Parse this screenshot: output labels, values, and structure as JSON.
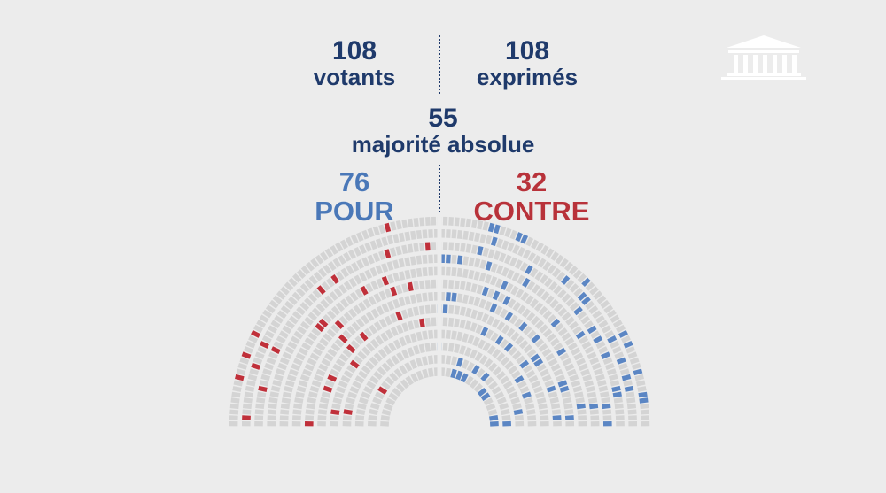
{
  "chart_data": {
    "type": "hemicycle",
    "votants": {
      "value": "108",
      "label": "votants"
    },
    "exprimes": {
      "value": "108",
      "label": "exprimés"
    },
    "majorite": {
      "value": "55",
      "label": "majorité absolue"
    },
    "pour": {
      "value": "76",
      "label": "POUR",
      "count": 76
    },
    "contre": {
      "value": "32",
      "label": "CONTRE",
      "count": 32
    },
    "legend_colors": {
      "pour": "#5b86c4",
      "contre": "#c0303a",
      "empty": "#d4d4d4"
    },
    "logo_icon": "assemblee-nationale-building-icon"
  }
}
